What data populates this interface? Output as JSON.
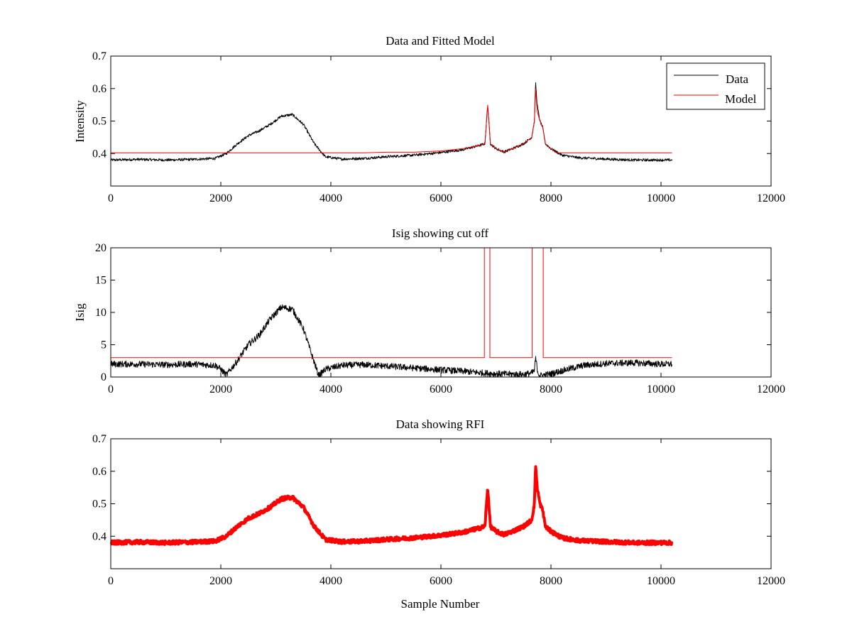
{
  "chart_data": [
    {
      "type": "line",
      "title": "Data and Fitted Model",
      "xlabel": "",
      "ylabel": "Intensity",
      "xlim": [
        0,
        12000
      ],
      "ylim": [
        0.3,
        0.7
      ],
      "xticks": [
        "0",
        "2000",
        "4000",
        "6000",
        "8000",
        "10000",
        "12000"
      ],
      "yticks": [
        "0.4",
        "0.5",
        "0.6",
        "0.7"
      ],
      "legend": {
        "position": "top-right",
        "entries": [
          "Data",
          "Model"
        ]
      },
      "series": [
        {
          "name": "Data",
          "color": "#000000",
          "x": [
            0,
            500,
            1000,
            1500,
            1900,
            2100,
            2300,
            2500,
            2700,
            2900,
            3100,
            3300,
            3500,
            3700,
            3900,
            4200,
            4600,
            5000,
            5500,
            6000,
            6400,
            6700,
            6800,
            6850,
            6900,
            7000,
            7150,
            7300,
            7500,
            7650,
            7700,
            7720,
            7750,
            7800,
            7850,
            7900,
            8000,
            8200,
            8500,
            9000,
            9500,
            10000,
            10200
          ],
          "y": [
            0.38,
            0.382,
            0.38,
            0.382,
            0.385,
            0.4,
            0.43,
            0.455,
            0.47,
            0.49,
            0.515,
            0.52,
            0.49,
            0.43,
            0.39,
            0.383,
            0.385,
            0.39,
            0.395,
            0.403,
            0.412,
            0.425,
            0.43,
            0.55,
            0.43,
            0.415,
            0.405,
            0.415,
            0.43,
            0.45,
            0.5,
            0.62,
            0.55,
            0.5,
            0.48,
            0.43,
            0.415,
            0.395,
            0.387,
            0.383,
            0.38,
            0.38,
            0.38
          ],
          "noise": 0.004
        },
        {
          "name": "Model",
          "color": "#ff0000",
          "x": [
            0,
            4600,
            5000,
            5500,
            6000,
            6400,
            6700,
            6800,
            6850,
            6900,
            7000,
            7150,
            7300,
            7500,
            7650,
            7700,
            7720,
            7750,
            7800,
            7850,
            7900,
            8000,
            8100,
            10200
          ],
          "y": [
            0.402,
            0.402,
            0.404,
            0.404,
            0.408,
            0.415,
            0.425,
            0.43,
            0.55,
            0.43,
            0.415,
            0.405,
            0.415,
            0.43,
            0.45,
            0.5,
            0.6,
            0.53,
            0.5,
            0.48,
            0.43,
            0.415,
            0.402,
            0.402
          ],
          "noise": 0
        }
      ]
    },
    {
      "type": "line",
      "title": "Isig showing cut off",
      "xlabel": "",
      "ylabel": "Isig",
      "xlim": [
        0,
        12000
      ],
      "ylim": [
        0,
        20
      ],
      "xticks": [
        "0",
        "2000",
        "4000",
        "6000",
        "8000",
        "10000",
        "12000"
      ],
      "yticks": [
        "0",
        "5",
        "10",
        "15",
        "20"
      ],
      "series": [
        {
          "color": "#000000",
          "x": [
            0,
            500,
            1000,
            1500,
            1900,
            2000,
            2100,
            2300,
            2500,
            2700,
            2900,
            3100,
            3300,
            3500,
            3650,
            3780,
            3900,
            4200,
            4600,
            5000,
            5500,
            6000,
            6400,
            6800,
            7000,
            7500,
            7650,
            7700,
            7720,
            7760,
            7800,
            8000,
            8300,
            8600,
            9000,
            9500,
            10000,
            10200
          ],
          "y": [
            2,
            2,
            1.9,
            2,
            1.8,
            1.2,
            0.3,
            2.5,
            5,
            6.5,
            9,
            10.8,
            10.5,
            7.5,
            3.5,
            0.2,
            1.2,
            1.8,
            1.9,
            1.7,
            1.4,
            1.1,
            0.9,
            0.6,
            0.5,
            0.4,
            0.6,
            1,
            3,
            0.8,
            0.2,
            0.5,
            1.2,
            1.8,
            2.1,
            2.2,
            2,
            2
          ],
          "noise": 0.5
        },
        {
          "color": "#ff0000",
          "x": [
            0,
            6790,
            6790,
            6890,
            6890,
            7660,
            7660,
            7860,
            7860,
            10200
          ],
          "y": [
            3,
            3,
            20,
            20,
            3,
            3,
            20,
            20,
            3,
            3
          ],
          "noise": 0
        }
      ]
    },
    {
      "type": "scatter",
      "title": "Data showing RFI",
      "xlabel": "Sample Number",
      "ylabel": "",
      "xlim": [
        0,
        12000
      ],
      "ylim": [
        0.3,
        0.7
      ],
      "xticks": [
        "0",
        "2000",
        "4000",
        "6000",
        "8000",
        "10000",
        "12000"
      ],
      "yticks": [
        "0.4",
        "0.5",
        "0.6",
        "0.7"
      ],
      "series": [
        {
          "color": "#ff0000",
          "x": [
            0,
            500,
            1000,
            1500,
            1900,
            2100,
            2300,
            2500,
            2700,
            2900,
            3100,
            3300,
            3500,
            3700,
            3900,
            4200,
            4600,
            5000,
            5500,
            6000,
            6400,
            6700,
            6800,
            6850,
            6900,
            7000,
            7150,
            7300,
            7500,
            7650,
            7700,
            7720,
            7750,
            7800,
            7850,
            7900,
            8000,
            8200,
            8500,
            9000,
            9500,
            10000,
            10200
          ],
          "y": [
            0.38,
            0.382,
            0.38,
            0.382,
            0.385,
            0.4,
            0.43,
            0.455,
            0.47,
            0.49,
            0.515,
            0.52,
            0.49,
            0.43,
            0.39,
            0.383,
            0.385,
            0.39,
            0.395,
            0.403,
            0.412,
            0.425,
            0.43,
            0.55,
            0.43,
            0.415,
            0.405,
            0.415,
            0.43,
            0.45,
            0.5,
            0.62,
            0.55,
            0.5,
            0.48,
            0.43,
            0.415,
            0.395,
            0.387,
            0.383,
            0.38,
            0.38,
            0.38
          ],
          "noise": 0.006
        }
      ]
    }
  ]
}
